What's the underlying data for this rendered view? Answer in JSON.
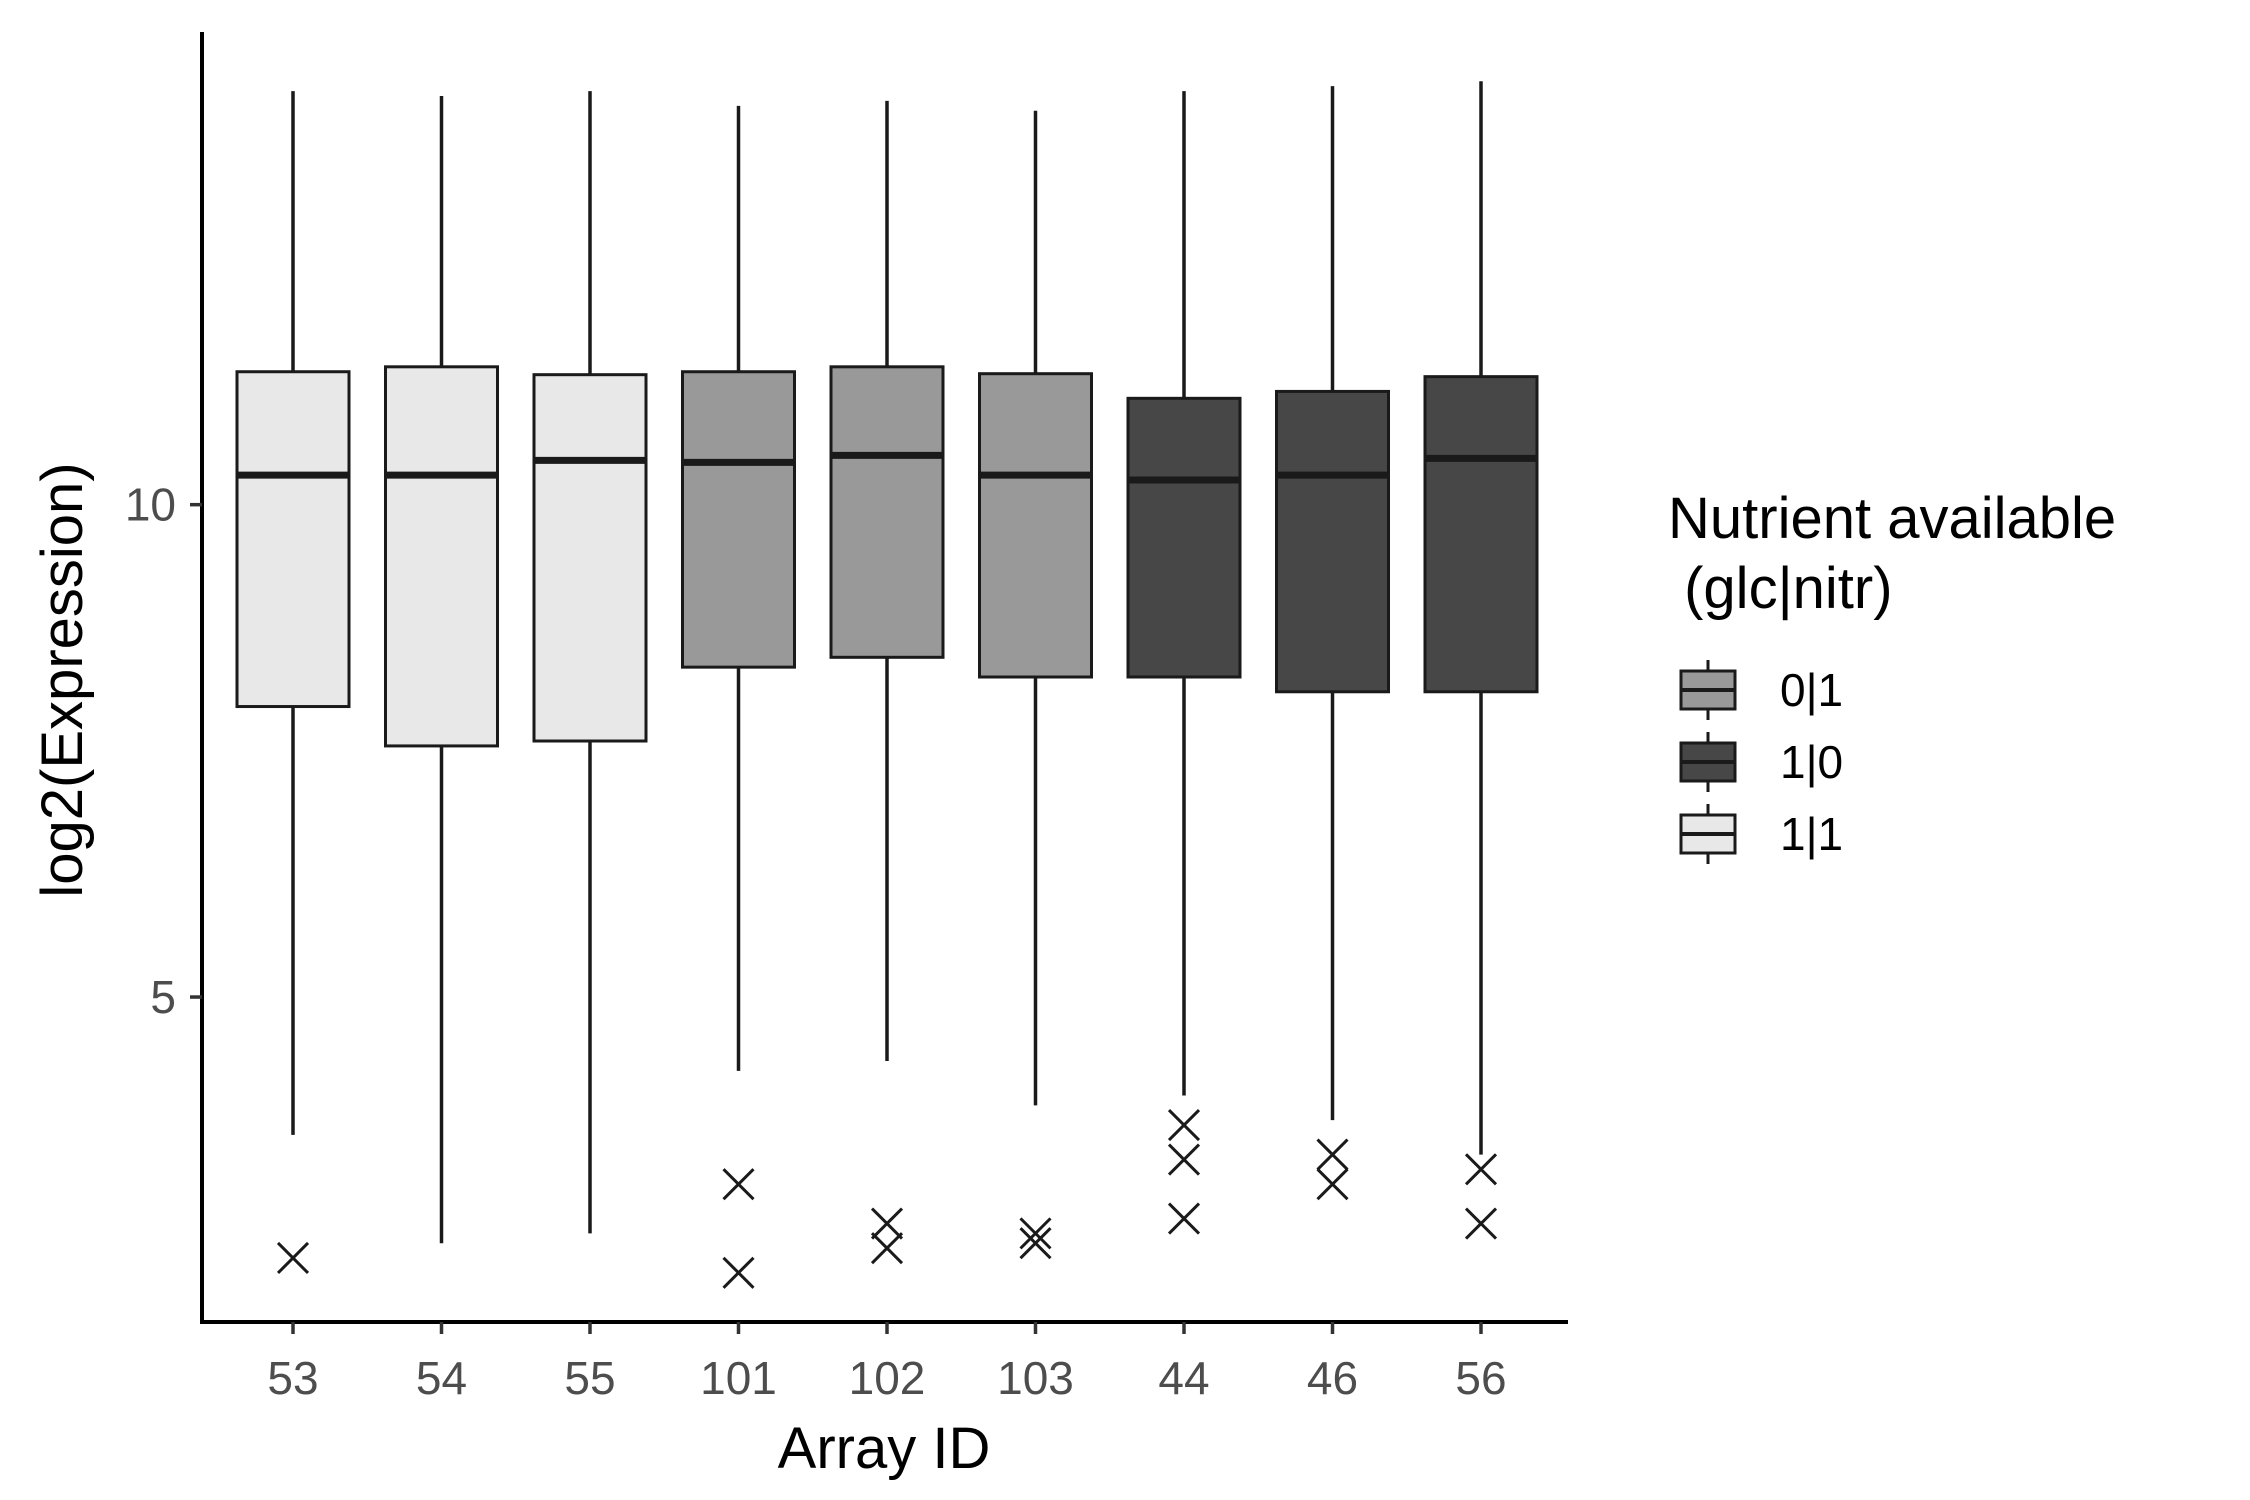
{
  "chart_data": {
    "type": "boxplot",
    "xlabel": "Array ID",
    "ylabel": "log2(Expression)",
    "ylim": [
      1.7,
      14.8
    ],
    "yticks": [
      5,
      10
    ],
    "categories": [
      "53",
      "54",
      "55",
      "101",
      "102",
      "103",
      "44",
      "46",
      "56"
    ],
    "groups": [
      "1|1",
      "1|1",
      "1|1",
      "0|1",
      "0|1",
      "0|1",
      "1|0",
      "1|0",
      "1|0"
    ],
    "boxes": [
      {
        "whisker_low": 3.6,
        "q1": 7.95,
        "median": 10.3,
        "q3": 11.35,
        "whisker_high": 14.2,
        "outliers": [
          2.35
        ]
      },
      {
        "whisker_low": 2.5,
        "q1": 7.55,
        "median": 10.3,
        "q3": 11.4,
        "whisker_high": 14.15,
        "outliers": []
      },
      {
        "whisker_low": 2.6,
        "q1": 7.6,
        "median": 10.45,
        "q3": 11.32,
        "whisker_high": 14.2,
        "outliers": []
      },
      {
        "whisker_low": 4.25,
        "q1": 8.35,
        "median": 10.43,
        "q3": 11.35,
        "whisker_high": 14.05,
        "outliers": [
          3.1,
          2.2
        ]
      },
      {
        "whisker_low": 4.35,
        "q1": 8.45,
        "median": 10.5,
        "q3": 11.4,
        "whisker_high": 14.1,
        "outliers": [
          2.7,
          2.45
        ]
      },
      {
        "whisker_low": 3.9,
        "q1": 8.25,
        "median": 10.3,
        "q3": 11.33,
        "whisker_high": 14.0,
        "outliers": [
          2.6,
          2.5
        ]
      },
      {
        "whisker_low": 4.0,
        "q1": 8.25,
        "median": 10.25,
        "q3": 11.08,
        "whisker_high": 14.2,
        "outliers": [
          3.7,
          3.35,
          2.75
        ]
      },
      {
        "whisker_low": 3.75,
        "q1": 8.1,
        "median": 10.3,
        "q3": 11.15,
        "whisker_high": 14.25,
        "outliers": [
          3.4,
          3.1
        ]
      },
      {
        "whisker_low": 3.4,
        "q1": 8.1,
        "median": 10.47,
        "q3": 11.3,
        "whisker_high": 14.3,
        "outliers": [
          3.25,
          2.7
        ]
      }
    ],
    "legend": {
      "title_line1": "Nutrient available",
      "title_line2": " (glc|nitr)",
      "placement": "right",
      "items": [
        {
          "label": "0|1",
          "color": "#999999"
        },
        {
          "label": "1|0",
          "color": "#474747"
        },
        {
          "label": "1|1",
          "color": "#e8e8e8"
        }
      ]
    },
    "grid": false
  }
}
